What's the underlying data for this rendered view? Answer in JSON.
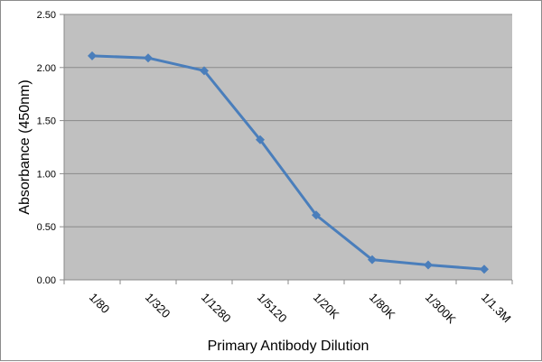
{
  "chart_data": {
    "type": "line",
    "title": "",
    "xlabel": "Primary Antibody Dilution",
    "ylabel": "Absorbance (450nm)",
    "categories": [
      "1/80",
      "1/320",
      "1/1280",
      "1/5120",
      "1/20K",
      "1/80K",
      "1/300K",
      "1/1.3M"
    ],
    "series": [
      {
        "values": [
          2.11,
          2.09,
          1.97,
          1.32,
          0.61,
          0.19,
          0.14,
          0.1
        ],
        "color": "#4a7ebb"
      }
    ],
    "ylim": [
      0,
      2.5
    ],
    "yticks": [
      "0.00",
      "0.50",
      "1.00",
      "1.50",
      "2.00",
      "2.50"
    ],
    "grid": true,
    "plot_background": "#c0c0c0",
    "marker": "diamond",
    "legend": "none"
  }
}
